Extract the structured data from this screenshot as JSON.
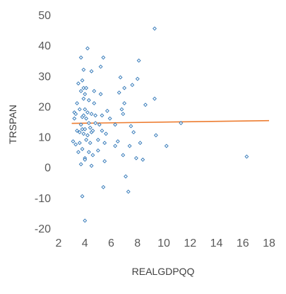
{
  "chart_data": {
    "type": "scatter",
    "title": "",
    "xlabel": "REALGDPQQ",
    "ylabel": "TRSPAN",
    "xlim": [
      2,
      18
    ],
    "ylim": [
      -20,
      50
    ],
    "xticks": [
      2,
      4,
      6,
      8,
      10,
      12,
      14,
      16,
      18
    ],
    "yticks": [
      -20,
      -10,
      0,
      10,
      20,
      30,
      40,
      50
    ],
    "grid": false,
    "legend": "none",
    "colors": {
      "points": "#2e75b6",
      "trendline": "#ed7d31",
      "text": "#595959"
    },
    "series": [
      {
        "kind": "scatter",
        "points": [
          [
            3.1,
            8.5
          ],
          [
            3.2,
            18
          ],
          [
            3.2,
            16
          ],
          [
            3.3,
            7.5
          ],
          [
            3.3,
            17.5
          ],
          [
            3.4,
            21
          ],
          [
            3.4,
            12
          ],
          [
            3.5,
            5
          ],
          [
            3.5,
            27.5
          ],
          [
            3.6,
            8
          ],
          [
            3.6,
            11.5
          ],
          [
            3.6,
            19
          ],
          [
            3.7,
            1
          ],
          [
            3.7,
            14
          ],
          [
            3.7,
            25
          ],
          [
            3.7,
            36
          ],
          [
            3.8,
            6
          ],
          [
            3.8,
            12.5
          ],
          [
            3.8,
            16.5
          ],
          [
            3.8,
            28.5
          ],
          [
            3.8,
            -9.5
          ],
          [
            3.9,
            11
          ],
          [
            3.9,
            17
          ],
          [
            3.9,
            26
          ],
          [
            3.9,
            32
          ],
          [
            3.9,
            22.5
          ],
          [
            4.0,
            3
          ],
          [
            4.0,
            12.5
          ],
          [
            4.0,
            19
          ],
          [
            4.0,
            24
          ],
          [
            4.0,
            2.5
          ],
          [
            4.0,
            -17.5
          ],
          [
            4.1,
            9
          ],
          [
            4.1,
            16
          ],
          [
            4.1,
            26
          ],
          [
            4.2,
            10.5
          ],
          [
            4.2,
            18
          ],
          [
            4.2,
            39
          ],
          [
            4.3,
            5
          ],
          [
            4.3,
            14.5
          ],
          [
            4.3,
            22
          ],
          [
            4.4,
            13
          ],
          [
            4.4,
            8
          ],
          [
            4.5,
            11.5
          ],
          [
            4.5,
            17.5
          ],
          [
            4.5,
            31.5
          ],
          [
            4.5,
            0.5
          ],
          [
            4.6,
            4
          ],
          [
            4.6,
            12
          ],
          [
            4.7,
            21
          ],
          [
            4.7,
            25
          ],
          [
            4.8,
            17
          ],
          [
            4.8,
            14.5
          ],
          [
            5.0,
            5.5
          ],
          [
            5.0,
            9
          ],
          [
            5.1,
            14
          ],
          [
            5.2,
            33
          ],
          [
            5.2,
            24
          ],
          [
            5.3,
            12
          ],
          [
            5.3,
            17
          ],
          [
            5.4,
            36
          ],
          [
            5.4,
            -6.5
          ],
          [
            5.5,
            8
          ],
          [
            5.5,
            2
          ],
          [
            5.6,
            11
          ],
          [
            5.7,
            18.5
          ],
          [
            5.9,
            16
          ],
          [
            6.3,
            7
          ],
          [
            6.3,
            14
          ],
          [
            6.5,
            8.5
          ],
          [
            6.6,
            24.5
          ],
          [
            6.7,
            29.5
          ],
          [
            6.8,
            19
          ],
          [
            6.9,
            4
          ],
          [
            6.9,
            17.5
          ],
          [
            7.0,
            26
          ],
          [
            7.0,
            21
          ],
          [
            7.1,
            -3
          ],
          [
            7.3,
            -8
          ],
          [
            7.4,
            7
          ],
          [
            7.5,
            13.5
          ],
          [
            7.6,
            27
          ],
          [
            7.7,
            11.5
          ],
          [
            7.9,
            3
          ],
          [
            8.0,
            29
          ],
          [
            8.1,
            35
          ],
          [
            8.2,
            8
          ],
          [
            8.4,
            2.5
          ],
          [
            8.6,
            20.5
          ],
          [
            9.3,
            45.5
          ],
          [
            9.3,
            22.5
          ],
          [
            9.4,
            10.5
          ],
          [
            10.2,
            7
          ],
          [
            11.3,
            14.5
          ],
          [
            16.3,
            3.5
          ]
        ]
      },
      {
        "kind": "trendline",
        "points": [
          [
            3.0,
            14.4
          ],
          [
            18.0,
            15.3
          ]
        ]
      }
    ]
  }
}
